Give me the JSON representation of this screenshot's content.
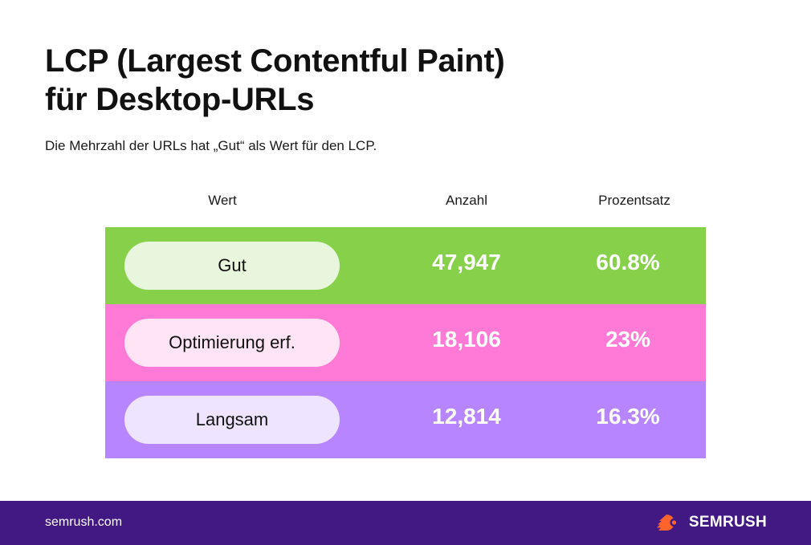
{
  "title_line1": "LCP (Largest Contentful Paint)",
  "title_line2": "für Desktop-URLs",
  "subtitle": "Die Mehrzahl der URLs hat „Gut“ als Wert für den LCP.",
  "headers": {
    "wert": "Wert",
    "anzahl": "Anzahl",
    "prozentsatz": "Prozentsatz"
  },
  "rows": [
    {
      "label": "Gut",
      "count": "47,947",
      "percent": "60.8%",
      "row_color": "#87d14a",
      "pill_color": "#e7f6dc"
    },
    {
      "label": "Optimierung erf.",
      "count": "18,106",
      "percent": "23%",
      "row_color": "#ff7ad6",
      "pill_color": "#ffe4f6"
    },
    {
      "label": "Langsam",
      "count": "12,814",
      "percent": "16.3%",
      "row_color": "#b685ff",
      "pill_color": "#efe4ff"
    }
  ],
  "footer": {
    "domain": "semrush.com",
    "brand": "SEMRUSH",
    "background": "#421983",
    "logo_icon": "semrush-fireball-icon",
    "logo_color": "#ff642d"
  },
  "chart_data": {
    "type": "table",
    "columns": [
      "Wert",
      "Anzahl",
      "Prozentsatz"
    ],
    "rows": [
      [
        "Gut",
        47947,
        60.8
      ],
      [
        "Optimierung erf.",
        18106,
        23
      ],
      [
        "Langsam",
        12814,
        16.3
      ]
    ],
    "title": "LCP (Largest Contentful Paint) für Desktop-URLs",
    "subtitle": "Die Mehrzahl der URLs hat „Gut“ als Wert für den LCP."
  }
}
